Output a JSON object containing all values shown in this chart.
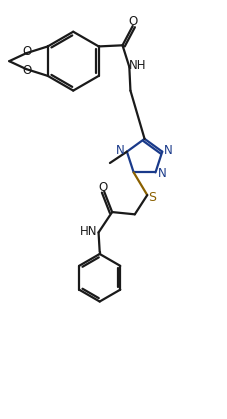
{
  "bg_color": "#ffffff",
  "line_color": "#1a1a1a",
  "n_color": "#1a3a8a",
  "s_color": "#8a6000",
  "line_width": 1.6,
  "fig_width": 2.28,
  "fig_height": 4.19,
  "dpi": 100,
  "xlim": [
    0,
    10
  ],
  "ylim": [
    0,
    18.5
  ]
}
